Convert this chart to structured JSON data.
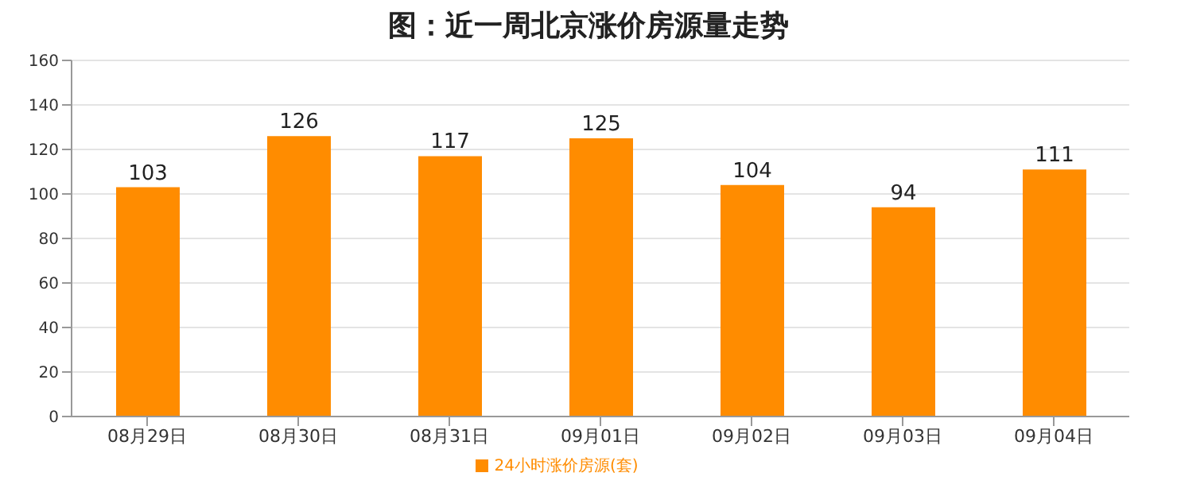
{
  "chart_data": {
    "type": "bar",
    "title": "图：近一周北京涨价房源量走势",
    "categories": [
      "08月29日",
      "08月30日",
      "08月31日",
      "09月01日",
      "09月02日",
      "09月03日",
      "09月04日"
    ],
    "series": [
      {
        "name": "24小时涨价房源(套)",
        "color": "#ff8c00",
        "values": [
          103,
          126,
          117,
          125,
          104,
          94,
          111
        ]
      }
    ],
    "ylim": [
      0,
      160
    ],
    "yticks": [
      0,
      20,
      40,
      60,
      80,
      100,
      120,
      140,
      160
    ],
    "grid": "y",
    "legend": "bottom",
    "data_labels": true
  }
}
